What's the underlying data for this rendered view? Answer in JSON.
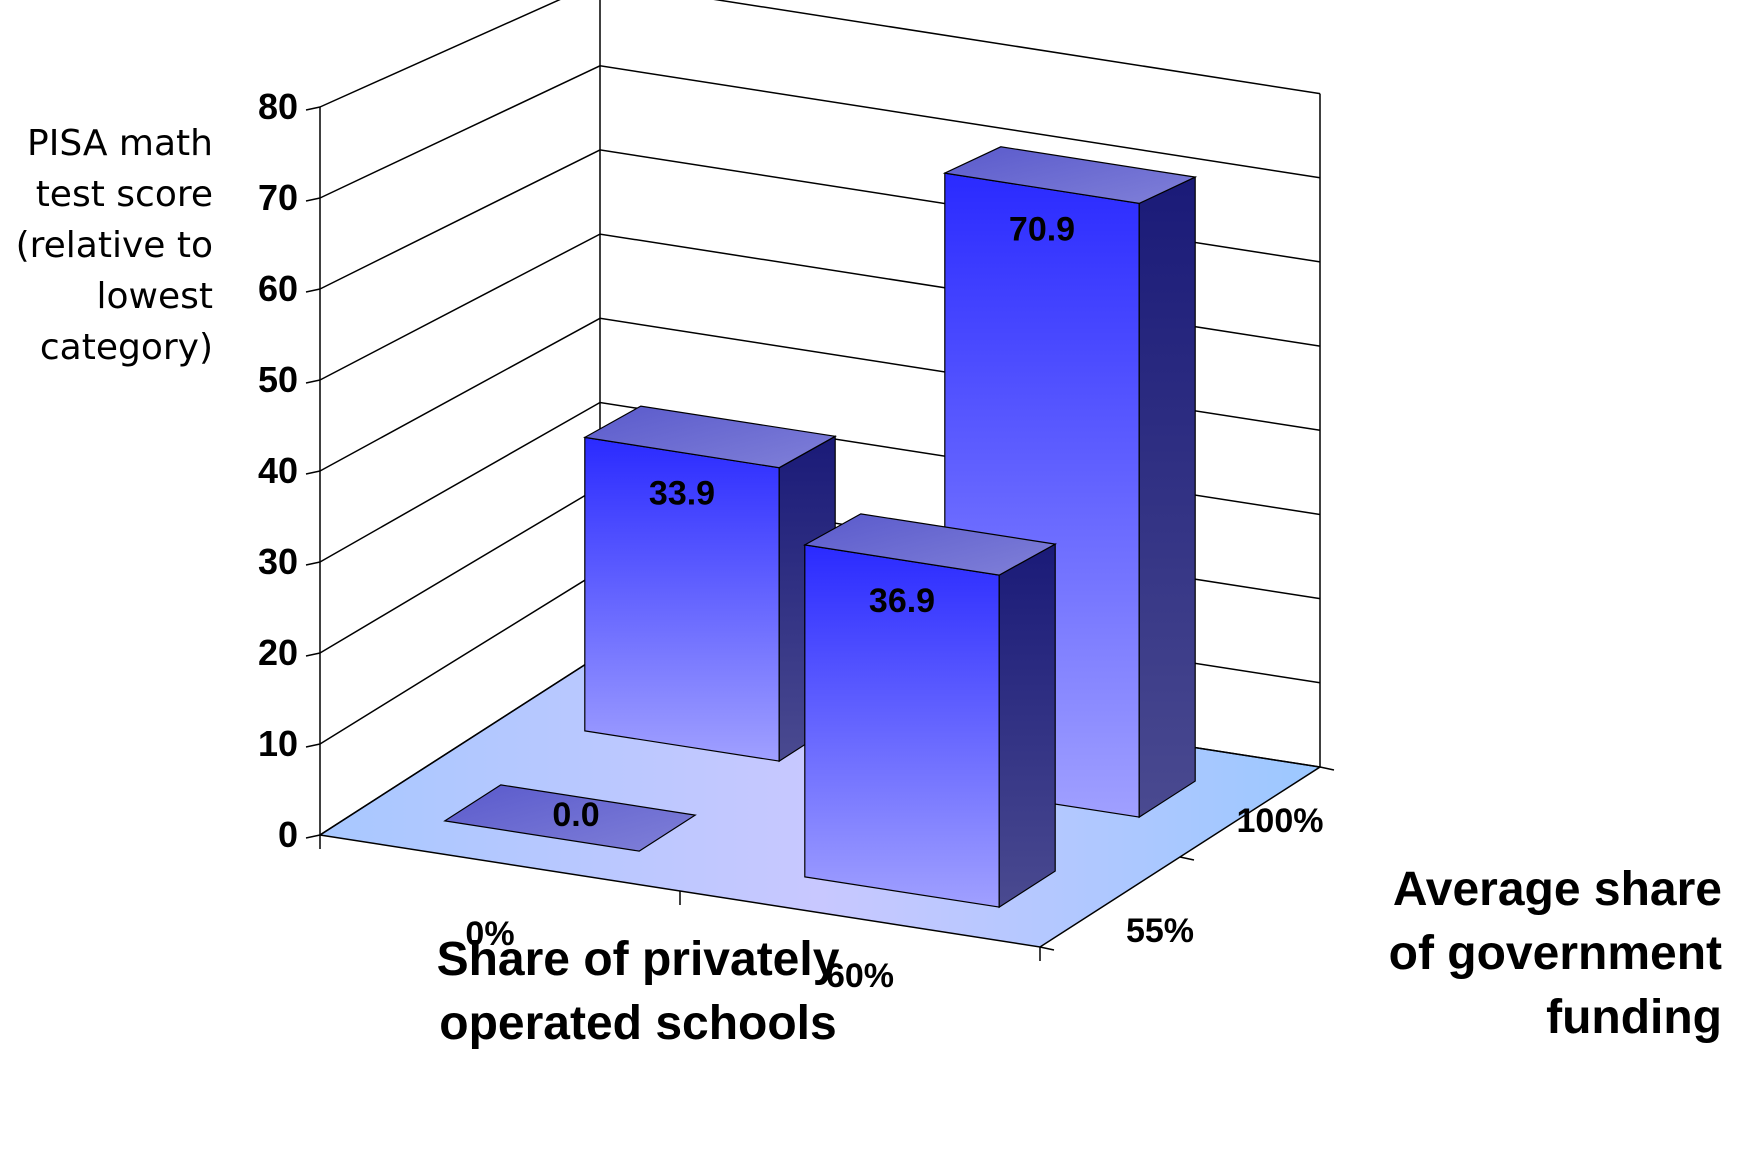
{
  "chart_data": {
    "type": "bar",
    "ylabel_lines": [
      "PISA math",
      "test score",
      "(relative to",
      "lowest",
      "category)"
    ],
    "x_title_lines": [
      "Share of privately",
      "operated schools"
    ],
    "z_title_lines": [
      "Average share",
      "of government",
      "funding"
    ],
    "x_categories": [
      "0%",
      "60%"
    ],
    "z_categories": [
      "55%",
      "100%"
    ],
    "y_ticks": [
      "0",
      "10",
      "20",
      "30",
      "40",
      "50",
      "60",
      "70",
      "80"
    ],
    "ylim": [
      0,
      80
    ],
    "bars": [
      {
        "x": "0%",
        "z": "55%",
        "value": 0.0,
        "label": "0.0"
      },
      {
        "x": "0%",
        "z": "100%",
        "value": 33.9,
        "label": "33.9"
      },
      {
        "x": "60%",
        "z": "55%",
        "value": 36.9,
        "label": "36.9"
      },
      {
        "x": "60%",
        "z": "100%",
        "value": 70.9,
        "label": "70.9"
      }
    ],
    "colors": {
      "bar_top": "#2929ff",
      "bar_bottom": "#9c9cff",
      "bar_side": "#3a3a8c",
      "bar_cap": "#6a6ad0",
      "floor": "#b9d0ff"
    }
  }
}
